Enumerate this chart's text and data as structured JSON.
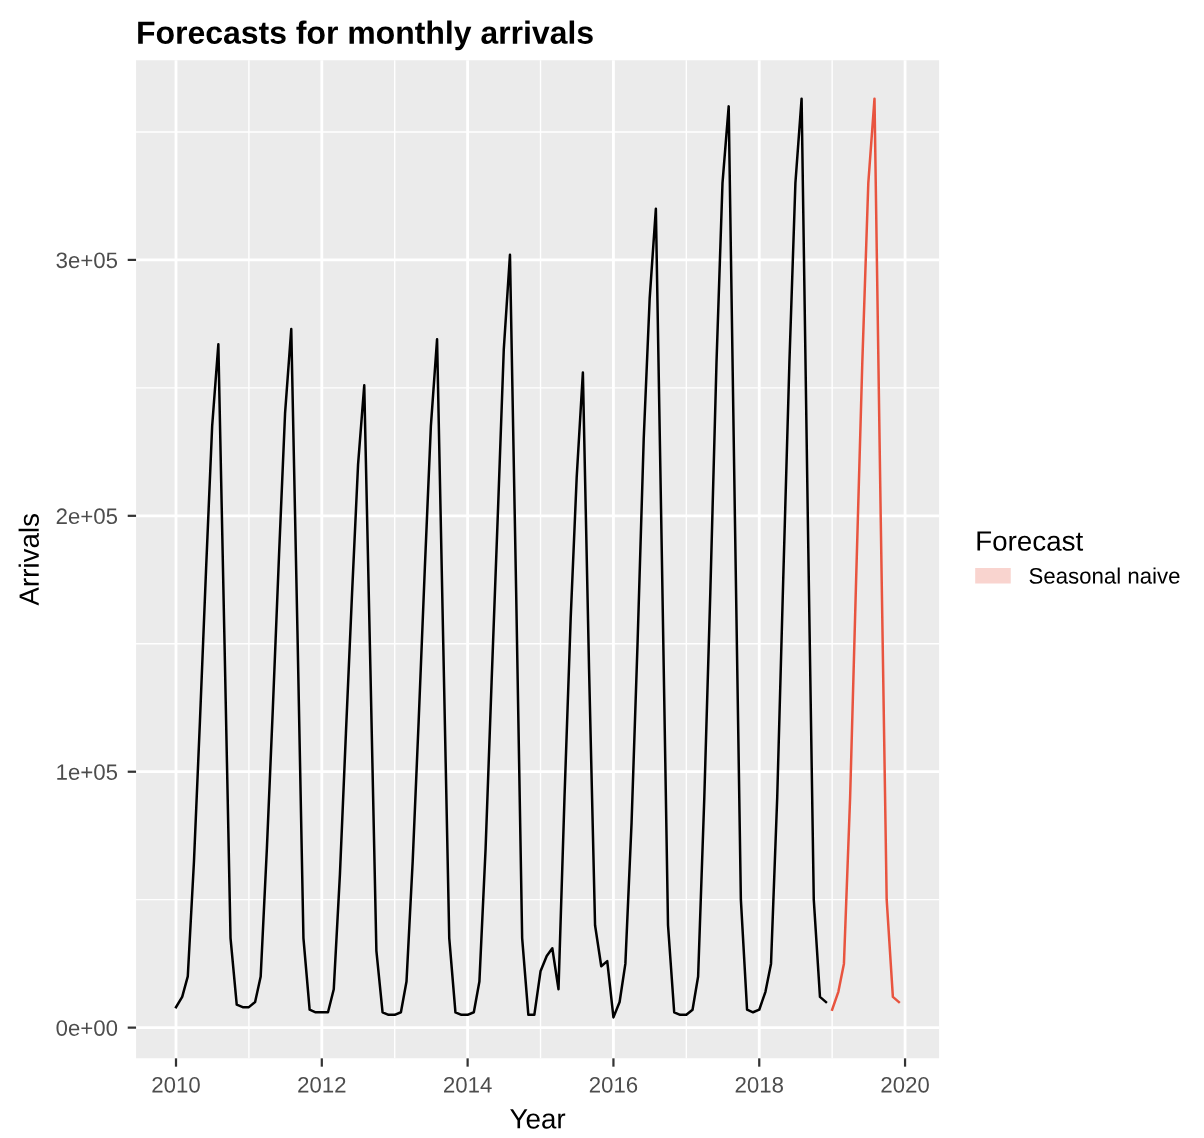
{
  "chart_data": {
    "type": "line",
    "title": "Forecasts for monthly arrivals",
    "xlabel": "Year",
    "ylabel": "Arrivals",
    "legend_title": "Forecast",
    "legend": "right",
    "grid": true,
    "xlim": [
      "2009-06-15",
      "2020-06-20"
    ],
    "ylim": [
      -12000,
      378000
    ],
    "xticks": [
      "2010",
      "2012",
      "2014",
      "2016",
      "2018",
      "2020"
    ],
    "yticks": [
      {
        "value": 0,
        "label": "0e+00"
      },
      {
        "value": 100000,
        "label": "1e+05"
      },
      {
        "value": 200000,
        "label": "2e+05"
      },
      {
        "value": 300000,
        "label": "3e+05"
      }
    ],
    "series": [
      {
        "color": "#000000",
        "x": [
          "2010-01",
          "2010-02",
          "2010-03",
          "2010-04",
          "2010-05",
          "2010-06",
          "2010-07",
          "2010-08",
          "2010-09",
          "2010-10",
          "2010-11",
          "2010-12",
          "2011-01",
          "2011-02",
          "2011-03",
          "2011-04",
          "2011-05",
          "2011-06",
          "2011-07",
          "2011-08",
          "2011-09",
          "2011-10",
          "2011-11",
          "2011-12",
          "2012-01",
          "2012-02",
          "2012-03",
          "2012-04",
          "2012-05",
          "2012-06",
          "2012-07",
          "2012-08",
          "2012-09",
          "2012-10",
          "2012-11",
          "2012-12",
          "2013-01",
          "2013-02",
          "2013-03",
          "2013-04",
          "2013-05",
          "2013-06",
          "2013-07",
          "2013-08",
          "2013-09",
          "2013-10",
          "2013-11",
          "2013-12",
          "2014-01",
          "2014-02",
          "2014-03",
          "2014-04",
          "2014-05",
          "2014-06",
          "2014-07",
          "2014-08",
          "2014-09",
          "2014-10",
          "2014-11",
          "2014-12",
          "2015-01",
          "2015-02",
          "2015-03",
          "2015-04",
          "2015-05",
          "2015-06",
          "2015-07",
          "2015-08",
          "2015-09",
          "2015-10",
          "2015-11",
          "2015-12",
          "2016-01",
          "2016-02",
          "2016-03",
          "2016-04",
          "2016-05",
          "2016-06",
          "2016-07",
          "2016-08",
          "2016-09",
          "2016-10",
          "2016-11",
          "2016-12",
          "2017-01",
          "2017-02",
          "2017-03",
          "2017-04",
          "2017-05",
          "2017-06",
          "2017-07",
          "2017-08",
          "2017-09",
          "2017-10",
          "2017-11",
          "2017-12",
          "2018-01",
          "2018-02",
          "2018-03",
          "2018-04",
          "2018-05",
          "2018-06",
          "2018-07",
          "2018-08",
          "2018-09",
          "2018-10",
          "2018-11",
          "2018-12"
        ],
        "values": [
          8000,
          12000,
          20000,
          65000,
          120000,
          180000,
          235000,
          267000,
          150000,
          35000,
          9000,
          8000,
          8000,
          10000,
          20000,
          70000,
          125000,
          185000,
          240000,
          273000,
          155000,
          35000,
          7000,
          6000,
          6000,
          6000,
          15000,
          60000,
          115000,
          170000,
          220000,
          251000,
          140000,
          30000,
          6000,
          5000,
          5000,
          6000,
          18000,
          65000,
          120000,
          180000,
          235000,
          269000,
          150000,
          35000,
          6000,
          5000,
          5000,
          6000,
          18000,
          70000,
          135000,
          200000,
          265000,
          302000,
          170000,
          35000,
          5000,
          5000,
          22000,
          28000,
          31000,
          15000,
          90000,
          160000,
          215000,
          256000,
          140000,
          40000,
          24000,
          26000,
          4000,
          10000,
          25000,
          80000,
          150000,
          230000,
          285000,
          320000,
          180000,
          40000,
          6000,
          5000,
          5000,
          7000,
          20000,
          90000,
          170000,
          260000,
          330000,
          360000,
          200000,
          50000,
          7000,
          6000,
          7000,
          14000,
          25000,
          90000,
          175000,
          260000,
          330000,
          363000,
          200000,
          50000,
          12000,
          10000
        ]
      },
      {
        "name": "Seasonal naive",
        "color": "#e8543f",
        "x": [
          "2019-01",
          "2019-02",
          "2019-03",
          "2019-04",
          "2019-05",
          "2019-06",
          "2019-07",
          "2019-08",
          "2019-09",
          "2019-10",
          "2019-11",
          "2019-12"
        ],
        "values": [
          7000,
          14000,
          25000,
          90000,
          175000,
          260000,
          330000,
          363000,
          200000,
          50000,
          12000,
          10000
        ]
      }
    ]
  }
}
